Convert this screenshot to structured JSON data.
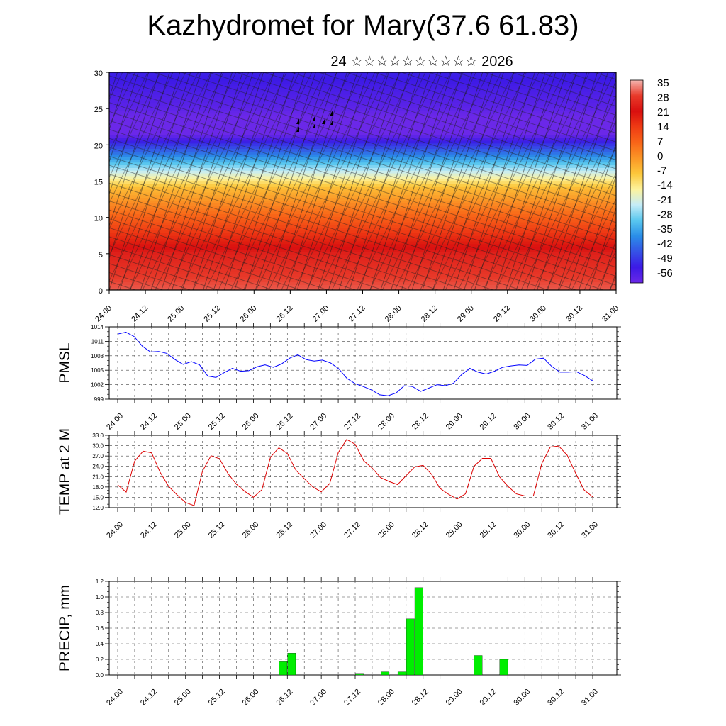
{
  "header": {
    "title": "Kazhydromet for Mary(37.6 61.83)",
    "subtitle": "24 ☆☆☆☆☆☆☆☆☆☆ 2026"
  },
  "chart_data": [
    {
      "type": "heatmap",
      "name": "wind-temperature cross-section",
      "xlabel": "",
      "ylabel": "",
      "ylim": [
        0,
        30
      ],
      "yticks": [
        "0",
        "5",
        "10",
        "15",
        "20",
        "25",
        "30"
      ],
      "x_ticks": [
        "24.00",
        "24.12",
        "25.00",
        "25.12",
        "26.00",
        "26.12",
        "27.00",
        "27.12",
        "28.00",
        "28.12",
        "29.00",
        "29.12",
        "30.00",
        "30.12",
        "31.00"
      ],
      "colorbar_labels": [
        "35",
        "28",
        "21",
        "14",
        "7",
        "0",
        "-7",
        "-14",
        "-21",
        "-28",
        "-35",
        "-42",
        "-49",
        "-56"
      ],
      "colorbar_colors": [
        "#f4b6b0",
        "#e83a2a",
        "#d90f0f",
        "#ef3b14",
        "#f86518",
        "#fb9626",
        "#fcc83b",
        "#fdf39c",
        "#c5ecf7",
        "#5ac8ef",
        "#2a8ee8",
        "#3552e6",
        "#3c1ae6",
        "#6b28e8"
      ],
      "level_profile": [
        {
          "y": 0,
          "value": 30
        },
        {
          "y": 5,
          "value": 24
        },
        {
          "y": 10,
          "value": 8
        },
        {
          "y": 14,
          "value": -5
        },
        {
          "y": 16,
          "value": -18
        },
        {
          "y": 18,
          "value": -32
        },
        {
          "y": 20,
          "value": -45
        },
        {
          "y": 22,
          "value": -60
        },
        {
          "y": 25,
          "value": -54
        },
        {
          "y": 30,
          "value": -48
        }
      ]
    },
    {
      "type": "line",
      "name": "PMSL",
      "ylabel": "PMSL",
      "ylim": [
        999,
        1014
      ],
      "yticks": [
        "999",
        "1002",
        "1005",
        "1008",
        "1011",
        "1014"
      ],
      "x_ticks": [
        "24.00",
        "24.12",
        "25.00",
        "25.12",
        "26.00",
        "26.12",
        "27.00",
        "27.12",
        "28.00",
        "28.12",
        "29.00",
        "29.12",
        "30.00",
        "30.12",
        "31.00"
      ],
      "x_range": [
        0,
        28
      ],
      "color": "#0000ff",
      "series": [
        {
          "name": "PMSL",
          "values": [
            1012.5,
            1012.9,
            1012,
            1010,
            1008.8,
            1008.9,
            1008.5,
            1007.2,
            1006.2,
            1006.8,
            1006.1,
            1003.8,
            1003.5,
            1004.5,
            1005.4,
            1004.8,
            1004.9,
            1005.7,
            1006.1,
            1005.6,
            1006.3,
            1007.5,
            1008.2,
            1007.2,
            1006.9,
            1007.1,
            1006.5,
            1005.3,
            1003.3,
            1002.2,
            1001.6,
            1000.9,
            999.9,
            999.7,
            1000.3,
            1001.8,
            1001.6,
            1000.6,
            1001.3,
            1002,
            1001.8,
            1002.3,
            1004.1,
            1005.4,
            1004.6,
            1004.2,
            1004.8,
            1005.6,
            1005.9,
            1006.1,
            1006,
            1007.3,
            1007.5,
            1005.8,
            1004.6,
            1004.6,
            1004.7,
            1003.9,
            1002.8
          ]
        }
      ]
    },
    {
      "type": "line",
      "name": "TEMP at 2 M",
      "ylabel": "TEMP at 2 M",
      "ylim": [
        12,
        33
      ],
      "yticks": [
        "12.0",
        "15.0",
        "18.0",
        "21.0",
        "24.0",
        "27.0",
        "30.0",
        "33.0"
      ],
      "x_ticks": [
        "24.00",
        "24.12",
        "25.00",
        "25.12",
        "26.00",
        "26.12",
        "27.00",
        "27.12",
        "28.00",
        "28.12",
        "29.00",
        "29.12",
        "30.00",
        "30.12",
        "31.00"
      ],
      "x_range": [
        0,
        28
      ],
      "color": "#dd0000",
      "series": [
        {
          "name": "TEMP",
          "values": [
            18.6,
            16.5,
            25.5,
            28.4,
            27.9,
            22.3,
            18.2,
            15.7,
            13.5,
            12.6,
            22.6,
            27.1,
            26.2,
            21.9,
            18.8,
            16.7,
            15,
            17.2,
            26.6,
            29.4,
            27.7,
            22.9,
            20.4,
            18,
            16.6,
            19,
            28,
            31.8,
            30.4,
            25.6,
            23.5,
            20.7,
            19.6,
            18.7,
            21.3,
            23.8,
            24.3,
            21.7,
            17.6,
            15.9,
            14.5,
            16,
            24,
            26.3,
            26.3,
            21,
            18.2,
            16,
            15.4,
            15.4,
            24.8,
            29.6,
            29.9,
            27.2,
            21.9,
            17.1,
            15.1
          ]
        }
      ]
    },
    {
      "type": "bar",
      "name": "PRECIP, mm",
      "ylabel": "PRECIP, mm",
      "ylim": [
        0,
        1.2
      ],
      "yticks": [
        "0.0",
        "0.2",
        "0.4",
        "0.6",
        "0.8",
        "1.0",
        "1.2"
      ],
      "x_ticks": [
        "24.00",
        "24.12",
        "25.00",
        "25.12",
        "26.00",
        "26.12",
        "27.00",
        "27.12",
        "28.00",
        "28.12",
        "29.00",
        "29.12",
        "30.00",
        "30.12",
        "31.00"
      ],
      "x_range": [
        0,
        28
      ],
      "color": "#00ee00",
      "bars": [
        {
          "x": 9.75,
          "value": 0.17
        },
        {
          "x": 10.25,
          "value": 0.28
        },
        {
          "x": 14.25,
          "value": 0.02
        },
        {
          "x": 15.75,
          "value": 0.04
        },
        {
          "x": 16.75,
          "value": 0.04
        },
        {
          "x": 17.25,
          "value": 0.72
        },
        {
          "x": 17.75,
          "value": 1.12
        },
        {
          "x": 21.25,
          "value": 0.25
        },
        {
          "x": 22.75,
          "value": 0.2
        }
      ]
    }
  ]
}
